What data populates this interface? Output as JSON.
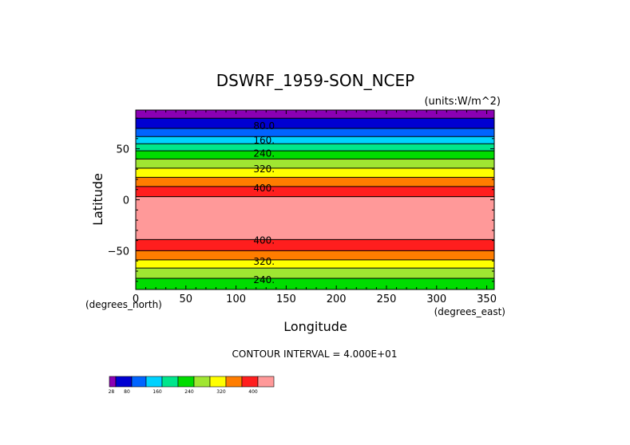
{
  "chart_data": {
    "type": "heatmap",
    "title": "DSWRF_1959-SON_NCEP",
    "units_label": "(units:W/m^2)",
    "xlabel": "Longitude",
    "ylabel": "Latitude",
    "x_unit_label": "(degrees_east)",
    "y_unit_label": "(degrees_north)",
    "xlim": [
      0,
      357.5
    ],
    "ylim": [
      -88,
      88
    ],
    "x_ticks": [
      0,
      50,
      100,
      150,
      200,
      250,
      300,
      350
    ],
    "y_ticks": [
      50,
      0,
      -50
    ],
    "x_tick_labels": [
      "0",
      "50",
      "100",
      "150",
      "200",
      "250",
      "300",
      "350"
    ],
    "y_tick_labels": [
      "50",
      "0",
      "−50"
    ],
    "contour_interval_text": "CONTOUR INTERVAL = 4.000E+01",
    "bands": [
      {
        "lat_top": 88,
        "lat_bottom": 80,
        "color": "#8b00b4"
      },
      {
        "lat_top": 80,
        "lat_bottom": 70,
        "color": "#0000d2"
      },
      {
        "lat_top": 70,
        "lat_bottom": 62,
        "color": "#0064ff"
      },
      {
        "lat_top": 62,
        "lat_bottom": 55,
        "color": "#00d2ff"
      },
      {
        "lat_top": 55,
        "lat_bottom": 48,
        "color": "#00e68c"
      },
      {
        "lat_top": 48,
        "lat_bottom": 40,
        "color": "#00dc00"
      },
      {
        "lat_top": 40,
        "lat_bottom": 31,
        "color": "#a0e632"
      },
      {
        "lat_top": 31,
        "lat_bottom": 22,
        "color": "#ffff00"
      },
      {
        "lat_top": 22,
        "lat_bottom": 13,
        "color": "#ff7d00"
      },
      {
        "lat_top": 13,
        "lat_bottom": 3,
        "color": "#ff1e1e"
      },
      {
        "lat_top": 3,
        "lat_bottom": -39,
        "color": "#ff9999"
      },
      {
        "lat_top": -39,
        "lat_bottom": -50,
        "color": "#ff1e1e"
      },
      {
        "lat_top": -50,
        "lat_bottom": -59,
        "color": "#ff7d00"
      },
      {
        "lat_top": -59,
        "lat_bottom": -67,
        "color": "#ffff00"
      },
      {
        "lat_top": -67,
        "lat_bottom": -77,
        "color": "#a0e632"
      },
      {
        "lat_top": -77,
        "lat_bottom": -88,
        "color": "#00dc00"
      }
    ],
    "contour_labels": [
      {
        "text": "80.0",
        "lon": 128,
        "lat": 73
      },
      {
        "text": "160.",
        "lon": 128,
        "lat": 59
      },
      {
        "text": "240.",
        "lon": 128,
        "lat": 46
      },
      {
        "text": "320.",
        "lon": 128,
        "lat": 31
      },
      {
        "text": "400.",
        "lon": 128,
        "lat": 12
      },
      {
        "text": "400.",
        "lon": 128,
        "lat": -39
      },
      {
        "text": "320.",
        "lon": 128,
        "lat": -60
      },
      {
        "text": "240.",
        "lon": 128,
        "lat": -78
      }
    ],
    "colorbar": {
      "colors": [
        "#8b00b4",
        "#0000d2",
        "#0064ff",
        "#00d2ff",
        "#00e68c",
        "#00dc00",
        "#a0e632",
        "#ffff00",
        "#ff7d00",
        "#ff1e1e",
        "#ff9999"
      ],
      "labels": [
        {
          "text": "28",
          "index": 0.3
        },
        {
          "text": "80",
          "index": 1.7
        },
        {
          "text": "160",
          "index": 3.7
        },
        {
          "text": "240",
          "index": 5.7
        },
        {
          "text": "320",
          "index": 7.7
        },
        {
          "text": "400",
          "index": 9.7
        }
      ]
    }
  }
}
